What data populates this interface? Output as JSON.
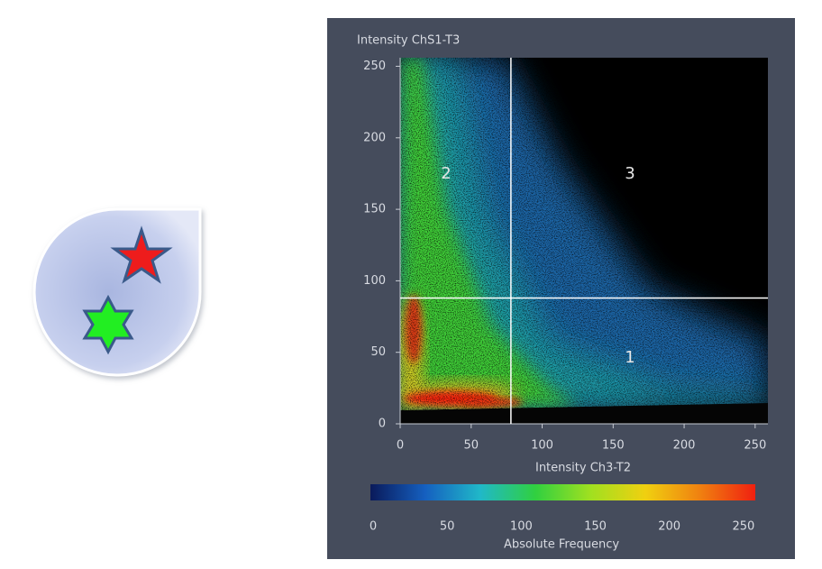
{
  "chart_data": {
    "type": "density_scatter",
    "x_label": "Intensity Ch3-T2",
    "y_label": "Intensity ChS1-T3",
    "xlim": [
      0,
      259
    ],
    "ylim": [
      0,
      256
    ],
    "xticks": [
      0,
      50,
      100,
      150,
      200,
      250
    ],
    "yticks": [
      0,
      50,
      100,
      150,
      200,
      250
    ],
    "thresholds": {
      "x": 78,
      "y": 88
    },
    "quadrants": [
      "1",
      "2",
      "3"
    ],
    "colorbar": {
      "label": "Absolute Frequency",
      "lim": [
        0,
        258
      ],
      "ticks": [
        0,
        50,
        100,
        150,
        200,
        250
      ],
      "colors": [
        "#0a1a5a",
        "#1560c0",
        "#20b8c8",
        "#30d040",
        "#a0e020",
        "#f0d010",
        "#f08010",
        "#f02010"
      ]
    }
  }
}
